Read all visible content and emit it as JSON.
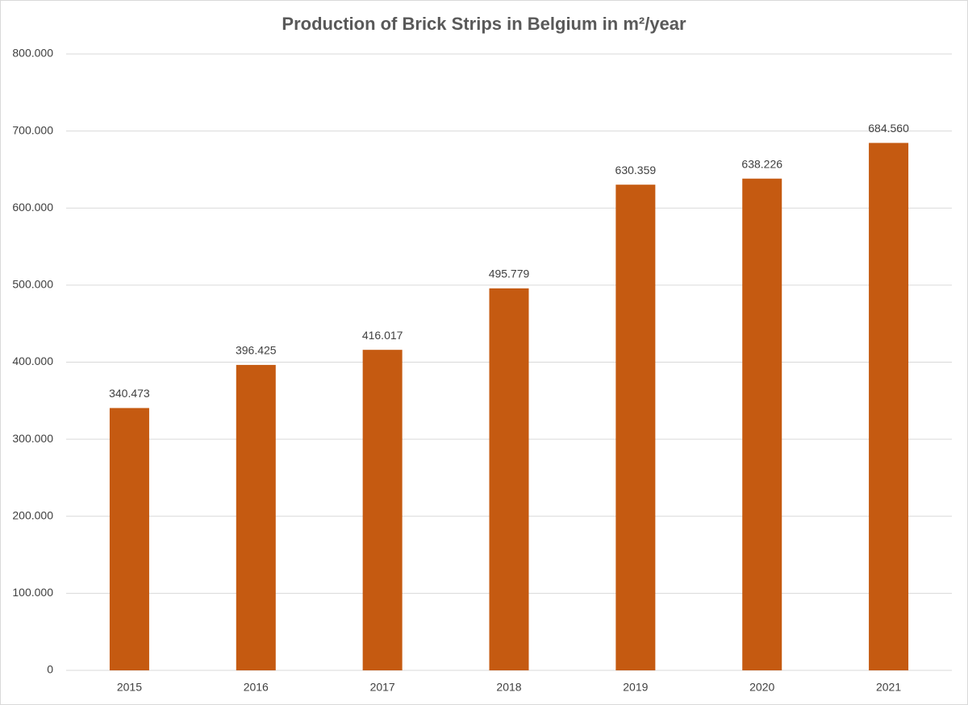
{
  "chart_data": {
    "type": "bar",
    "title": "Production of Brick Strips in Belgium in m²/year",
    "categories": [
      "2015",
      "2016",
      "2017",
      "2018",
      "2019",
      "2020",
      "2021"
    ],
    "values": [
      340473,
      396425,
      416017,
      495779,
      630359,
      638226,
      684560
    ],
    "value_labels": [
      "340.473",
      "396.425",
      "416.017",
      "495.779",
      "630.359",
      "638.226",
      "684.560"
    ],
    "color": "#c55a11",
    "ylim": [
      0,
      800000
    ],
    "yticks": [
      0,
      {
        "value": 100000,
        "label": "100.000"
      },
      {
        "value": 200000,
        "label": "200.000"
      },
      {
        "value": 300000,
        "label": "300.000"
      },
      {
        "value": 400000,
        "label": "400.000"
      },
      {
        "value": 500000,
        "label": "500.000"
      },
      {
        "value": 600000,
        "label": "600.000"
      },
      {
        "value": 700000,
        "label": "700.000"
      },
      {
        "value": 800000,
        "label": "800.000"
      }
    ],
    "grid": true
  }
}
